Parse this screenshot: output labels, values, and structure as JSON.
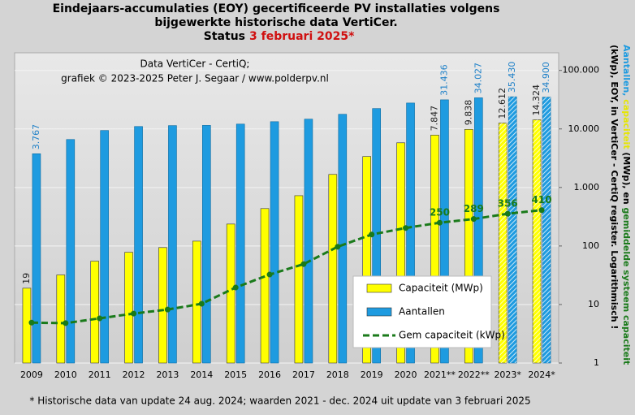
{
  "chart_data": {
    "type": "bar",
    "title": [
      "Eindejaars-accumulaties (EOY) gecertificeerde PV installaties volgens",
      "bijgewerkte historische data VertiCer."
    ],
    "status_label": "Status",
    "status_date": "3 februari 2025*",
    "annotation": [
      "Data VertiCer - CertiQ;",
      "grafiek © 2023-2025 Peter J. Segaar / www.polderpv.nl"
    ],
    "footnote": "* Historische data van update 24 aug. 2024; waarden 2021 - dec. 2024 uit update van 3 februari 2025",
    "ylabel": [
      [
        {
          "text": "Aantallen, ",
          "color": "#1e9be0"
        },
        {
          "text": "capaciteit",
          "color": "#e6e600"
        },
        {
          "text": " (MWp), en ",
          "color": "#000000"
        },
        {
          "text": "gemiddelde systeem capaciteit",
          "color": "#1a7a1a"
        }
      ],
      [
        {
          "text": "(kWp), EOY, in VertiCer - CertiQ register. Logarithmisch !",
          "color": "#000000"
        }
      ]
    ],
    "categories": [
      "2009",
      "2010",
      "2011",
      "2012",
      "2013",
      "2014",
      "2015",
      "2016",
      "2017",
      "2018",
      "2019",
      "2020",
      "2021**",
      "2022**",
      "2023*",
      "2024*"
    ],
    "series": [
      {
        "name": "Capaciteit (MWp)",
        "type": "bar",
        "color": "#ffff00",
        "values": [
          19,
          32,
          55,
          78,
          94,
          121,
          237,
          436,
          724,
          1670,
          3380,
          5800,
          7847,
          9838,
          12612,
          14324
        ],
        "value_labels": [
          "19",
          null,
          null,
          null,
          null,
          null,
          null,
          null,
          null,
          null,
          null,
          null,
          "7.847",
          "9.838",
          "12.612",
          "14.324"
        ]
      },
      {
        "name": "Aantallen",
        "type": "bar",
        "color": "#1e9be0",
        "values": [
          3767,
          6600,
          9400,
          11000,
          11400,
          11500,
          12100,
          13300,
          14700,
          17800,
          22300,
          27700,
          31436,
          34027,
          35430,
          34900
        ],
        "value_labels": [
          "3.767",
          null,
          null,
          null,
          null,
          null,
          null,
          null,
          null,
          null,
          null,
          null,
          "31.436",
          "34.027",
          "35.430",
          "34.900"
        ]
      },
      {
        "name": "Gem capaciteit (kWp)",
        "type": "line",
        "color": "#1a7a1a",
        "values": [
          4.9,
          4.8,
          5.8,
          7.0,
          8.2,
          10.3,
          19.5,
          32.5,
          49,
          97,
          157,
          203,
          250,
          289,
          356,
          410
        ],
        "value_labels": [
          null,
          null,
          null,
          null,
          null,
          null,
          null,
          null,
          null,
          null,
          null,
          null,
          "250",
          "289",
          "356",
          "410"
        ]
      }
    ],
    "ylim": [
      1,
      200000
    ],
    "yticks": [
      1,
      10,
      100,
      {
        "value": 1000,
        "label": "1.000"
      },
      {
        "value": 10000,
        "label": "10.000"
      },
      {
        "value": 100000,
        "label": "100.000"
      }
    ],
    "log_scale": true,
    "grid": true,
    "legend": "lower right"
  }
}
